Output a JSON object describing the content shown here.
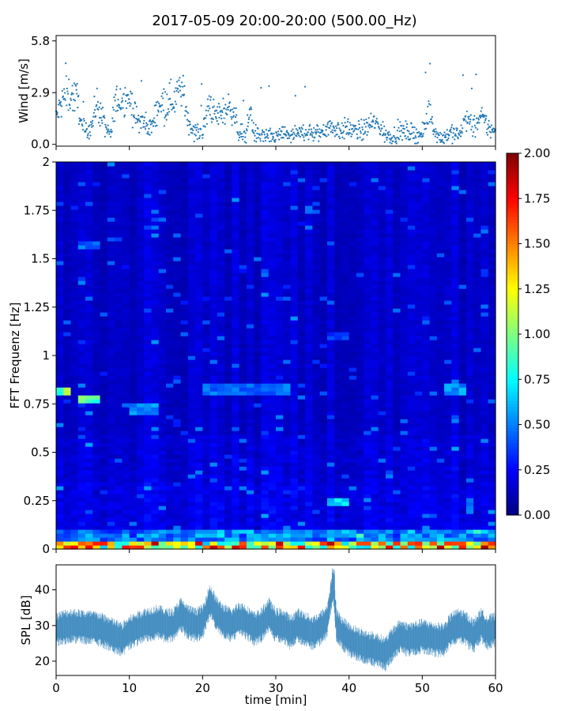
{
  "title": "2017-05-09 20:00-20:00 (500.00_Hz)",
  "chart_data": [
    {
      "type": "scatter",
      "name": "wind",
      "ylabel": "Wind [m/s]",
      "xlim": [
        0,
        60
      ],
      "ylim": [
        -0.1,
        6.1
      ],
      "yticks": [
        0.0,
        2.9,
        5.8
      ],
      "ytick_labels": [
        "0.0",
        "2.9",
        "5.8"
      ],
      "color": "#1f77b4",
      "keypoints_x": [
        0,
        1,
        2,
        3,
        3.5,
        4,
        5,
        5.5,
        6,
        7,
        7.5,
        8,
        9,
        10,
        11,
        12,
        13,
        14,
        15,
        16,
        16.5,
        17,
        17.5,
        18,
        19,
        20,
        21,
        21.5,
        22,
        23,
        24,
        25,
        26,
        26.5,
        27,
        28,
        29,
        30,
        31,
        32,
        33,
        34,
        35,
        36,
        37,
        38,
        39,
        40,
        41,
        42,
        43,
        44,
        45,
        46,
        47,
        48,
        49,
        50,
        51,
        51.5,
        52,
        53,
        54,
        55,
        56,
        57,
        58,
        59,
        60
      ],
      "keypoints_y": [
        1.5,
        2.6,
        2.8,
        2.5,
        0.9,
        0.7,
        1.2,
        2.4,
        1.8,
        0.7,
        0.5,
        2.3,
        2.7,
        2.6,
        1.4,
        1.2,
        0.9,
        2.3,
        2.4,
        2.5,
        2.8,
        3.2,
        2.6,
        1.3,
        0.7,
        0.6,
        2.4,
        1.7,
        1.6,
        1.9,
        2.1,
        0.6,
        0.6,
        2.1,
        0.6,
        0.5,
        0.4,
        0.4,
        0.6,
        0.5,
        0.5,
        0.8,
        0.6,
        0.6,
        1.0,
        0.9,
        0.8,
        0.9,
        0.7,
        0.8,
        1.2,
        1.1,
        0.5,
        0.5,
        0.7,
        0.7,
        0.6,
        0.5,
        2.0,
        1.1,
        0.5,
        0.4,
        0.7,
        0.5,
        1.5,
        0.9,
        1.5,
        1.0,
        0.6
      ],
      "n_points": 1000
    },
    {
      "type": "heatmap",
      "name": "spectrogram",
      "ylabel": "FFT Frequenz [Hz]",
      "xlim": [
        0,
        60
      ],
      "ylim": [
        0,
        2
      ],
      "yticks": [
        0,
        0.25,
        0.5,
        0.75,
        1,
        1.25,
        1.5,
        1.75,
        2
      ],
      "ytick_labels": [
        "0",
        "0.25",
        "0.5",
        "0.75",
        "1",
        "1.25",
        "1.5",
        "1.75",
        "2"
      ],
      "colormap": "jet",
      "clim": [
        0,
        2
      ],
      "colorbar_ticks": [
        "0.00",
        "0.25",
        "0.50",
        "0.75",
        "1.00",
        "1.25",
        "1.50",
        "1.75",
        "2.00"
      ],
      "n_time_bins": 60,
      "n_freq_bins": 98,
      "features": [
        {
          "x": [
            0,
            2
          ],
          "f": 0.82,
          "v": 0.95
        },
        {
          "x": [
            3,
            6
          ],
          "f": 0.77,
          "v": 0.9
        },
        {
          "x": [
            10,
            14
          ],
          "f": 0.72,
          "v": 0.55
        },
        {
          "x": [
            37,
            40
          ],
          "f": 0.25,
          "v": 0.7
        },
        {
          "x": [
            37,
            40
          ],
          "f": 0.08,
          "v": 0.6
        },
        {
          "x": [
            37,
            40
          ],
          "f": 1.1,
          "v": 0.35
        },
        {
          "x": [
            53,
            56
          ],
          "f": 0.83,
          "v": 0.55
        },
        {
          "x": [
            20,
            32
          ],
          "f": 0.83,
          "v": 0.45
        },
        {
          "x": [
            3,
            6
          ],
          "f": 1.57,
          "v": 0.45
        }
      ]
    },
    {
      "type": "line",
      "name": "spl",
      "ylabel": "SPL [dB]",
      "xlabel": "time [min]",
      "xlim": [
        0,
        60
      ],
      "ylim": [
        16,
        47
      ],
      "yticks": [
        20,
        30,
        40
      ],
      "ytick_labels": [
        "20",
        "30",
        "40"
      ],
      "xticks": [
        0,
        10,
        20,
        30,
        40,
        50,
        60
      ],
      "xtick_labels": [
        "0",
        "10",
        "20",
        "30",
        "40",
        "50",
        "60"
      ],
      "color": "#1f77b4",
      "keypoints_x": [
        0,
        2,
        4,
        6,
        8,
        9,
        10,
        12,
        13,
        14,
        15,
        16,
        17,
        18,
        19,
        20,
        21,
        22,
        23,
        24,
        25,
        26,
        27,
        28,
        29,
        30,
        31,
        32,
        33,
        34,
        35,
        36,
        37,
        37.8,
        38.3,
        39,
        40,
        42,
        44,
        45,
        46,
        47,
        48,
        50,
        52,
        53,
        54,
        55,
        56,
        57,
        58,
        59,
        60
      ],
      "keypoints_y": [
        29,
        30,
        29.5,
        29,
        27,
        26,
        28,
        30,
        30.5,
        31,
        30,
        30,
        33,
        31,
        30,
        31,
        37,
        33,
        31,
        30,
        32,
        31,
        29,
        30,
        33,
        30,
        30,
        28,
        30,
        29,
        28,
        29,
        31,
        42,
        30,
        28,
        26,
        24,
        23,
        22,
        25,
        27,
        26,
        27,
        26,
        26,
        29,
        30,
        29,
        27,
        30,
        28,
        29
      ],
      "spike": {
        "x": 37.9,
        "y": 46
      },
      "n_points": 1400
    }
  ]
}
